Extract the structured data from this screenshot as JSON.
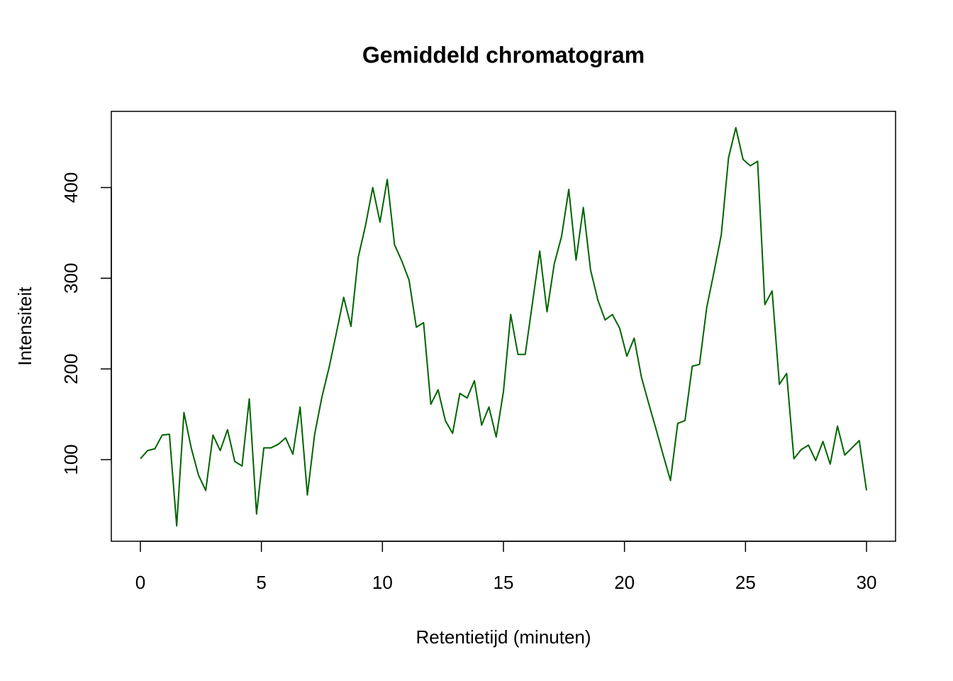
{
  "chart_data": {
    "type": "line",
    "title": "Gemiddeld chromatogram",
    "x_label": "Retentietijd (minuten)",
    "y_label": "Intensiteit",
    "x": [
      0,
      0.3,
      0.6,
      0.9,
      1.2,
      1.5,
      1.8,
      2.1,
      2.4,
      2.7,
      3,
      3.3,
      3.6,
      3.9,
      4.2,
      4.5,
      4.8,
      5.1,
      5.4,
      5.7,
      6,
      6.3,
      6.6,
      6.9,
      7.2,
      7.5,
      7.8,
      8.1,
      8.4,
      8.7,
      9,
      9.3,
      9.6,
      9.9,
      10.2,
      10.5,
      10.8,
      11.1,
      11.4,
      11.7,
      12,
      12.3,
      12.6,
      12.9,
      13.2,
      13.5,
      13.8,
      14.1,
      14.4,
      14.7,
      15,
      15.3,
      15.6,
      15.9,
      16.2,
      16.5,
      16.8,
      17.1,
      17.4,
      17.7,
      18,
      18.3,
      18.6,
      18.9,
      19.2,
      19.5,
      19.8,
      20.1,
      20.4,
      20.7,
      21,
      21.3,
      21.6,
      21.9,
      22.2,
      22.5,
      22.8,
      23.1,
      23.4,
      23.7,
      24,
      24.3,
      24.6,
      24.9,
      25.2,
      25.5,
      25.8,
      26.1,
      26.4,
      26.7,
      27,
      27.3,
      27.6,
      27.9,
      28.2,
      28.5,
      28.8,
      29.1,
      29.4,
      29.7,
      30
    ],
    "values": [
      101,
      110,
      112,
      127,
      128,
      27,
      152,
      113,
      83,
      66,
      127,
      110,
      133,
      98,
      93,
      167,
      40,
      113,
      113,
      117,
      124,
      106,
      158,
      61,
      128,
      169,
      202,
      240,
      279,
      247,
      323,
      358,
      400,
      362,
      409,
      337,
      319,
      298,
      246,
      251,
      161,
      177,
      143,
      129,
      173,
      168,
      187,
      138,
      158,
      125,
      175,
      260,
      216,
      216,
      273,
      330,
      263,
      316,
      346,
      398,
      320,
      378,
      309,
      276,
      254,
      260,
      245,
      214,
      234,
      191,
      162,
      134,
      105,
      77,
      140,
      143,
      203,
      205,
      268,
      307,
      348,
      433,
      466,
      431,
      424,
      429,
      271,
      286,
      183,
      195,
      101,
      111,
      116,
      99,
      120,
      95,
      137,
      105,
      113,
      121,
      66
    ],
    "color": "#006400",
    "xlim": [
      -1.2,
      31.2
    ],
    "ylim": [
      10,
      484
    ],
    "xticks": [
      0,
      5,
      10,
      15,
      20,
      25,
      30
    ],
    "yticks": [
      100,
      200,
      300,
      400
    ]
  }
}
